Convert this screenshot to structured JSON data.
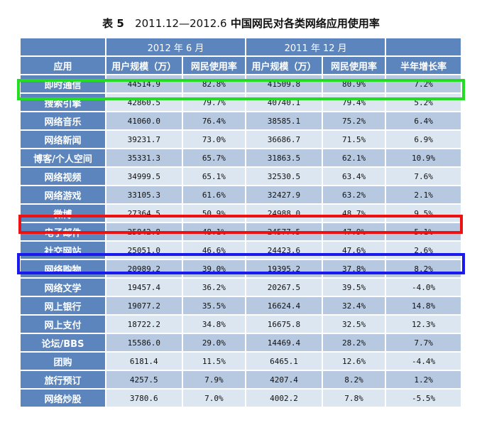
{
  "title": {
    "label": "表 5",
    "period": "2011.12—2012.6",
    "text": "中国网民对各类网络应用使用率"
  },
  "groups": {
    "g1": "2012 年 6 月",
    "g2": "2011 年 12 月"
  },
  "headers": {
    "app": "应用",
    "users": "用户规模（万）",
    "rate": "网民使用率",
    "growth": "半年增长率"
  },
  "rows": [
    {
      "app": "即时通信",
      "u2012": "44514.9",
      "r2012": "82.8%",
      "u2011": "41509.8",
      "r2011": "80.9%",
      "growth": "7.2%"
    },
    {
      "app": "搜索引擎",
      "u2012": "42860.5",
      "r2012": "79.7%",
      "u2011": "40740.1",
      "r2011": "79.4%",
      "growth": "5.2%"
    },
    {
      "app": "网络音乐",
      "u2012": "41060.0",
      "r2012": "76.4%",
      "u2011": "38585.1",
      "r2011": "75.2%",
      "growth": "6.4%"
    },
    {
      "app": "网络新闻",
      "u2012": "39231.7",
      "r2012": "73.0%",
      "u2011": "36686.7",
      "r2011": "71.5%",
      "growth": "6.9%"
    },
    {
      "app": "博客/个人空间",
      "u2012": "35331.3",
      "r2012": "65.7%",
      "u2011": "31863.5",
      "r2011": "62.1%",
      "growth": "10.9%"
    },
    {
      "app": "网络视频",
      "u2012": "34999.5",
      "r2012": "65.1%",
      "u2011": "32530.5",
      "r2011": "63.4%",
      "growth": "7.6%"
    },
    {
      "app": "网络游戏",
      "u2012": "33105.3",
      "r2012": "61.6%",
      "u2011": "32427.9",
      "r2011": "63.2%",
      "growth": "2.1%"
    },
    {
      "app": "微博",
      "u2012": "27364.5",
      "r2012": "50.9%",
      "u2011": "24988.0",
      "r2011": "48.7%",
      "growth": "9.5%"
    },
    {
      "app": "电子邮件",
      "u2012": "25842.8",
      "r2012": "48.1%",
      "u2011": "24577.5",
      "r2011": "47.9%",
      "growth": "5.1%"
    },
    {
      "app": "社交网站",
      "u2012": "25051.0",
      "r2012": "46.6%",
      "u2011": "24423.6",
      "r2011": "47.6%",
      "growth": "2.6%"
    },
    {
      "app": "网络购物",
      "u2012": "20989.2",
      "r2012": "39.0%",
      "u2011": "19395.2",
      "r2011": "37.8%",
      "growth": "8.2%"
    },
    {
      "app": "网络文学",
      "u2012": "19457.4",
      "r2012": "36.2%",
      "u2011": "20267.5",
      "r2011": "39.5%",
      "growth": "-4.0%"
    },
    {
      "app": "网上银行",
      "u2012": "19077.2",
      "r2012": "35.5%",
      "u2011": "16624.4",
      "r2011": "32.4%",
      "growth": "14.8%"
    },
    {
      "app": "网上支付",
      "u2012": "18722.2",
      "r2012": "34.8%",
      "u2011": "16675.8",
      "r2011": "32.5%",
      "growth": "12.3%"
    },
    {
      "app": "论坛/BBS",
      "u2012": "15586.0",
      "r2012": "29.0%",
      "u2011": "14469.4",
      "r2011": "28.2%",
      "growth": "7.7%"
    },
    {
      "app": "团购",
      "u2012": "6181.4",
      "r2012": "11.5%",
      "u2011": "6465.1",
      "r2011": "12.6%",
      "growth": "-4.4%"
    },
    {
      "app": "旅行预订",
      "u2012": "4257.5",
      "r2012": "7.9%",
      "u2011": "4207.4",
      "r2011": "8.2%",
      "growth": "1.2%"
    },
    {
      "app": "网络炒股",
      "u2012": "3780.6",
      "r2012": "7.0%",
      "u2011": "4002.2",
      "r2011": "7.8%",
      "growth": "-5.5%"
    }
  ],
  "highlights": {
    "green": "#22dd22",
    "red": "#ee1111",
    "blue": "#1a1aee"
  },
  "colors": {
    "header_blue": "#5b85bc",
    "row_dark": "#b7c9e1",
    "row_light": "#dce6f1"
  }
}
